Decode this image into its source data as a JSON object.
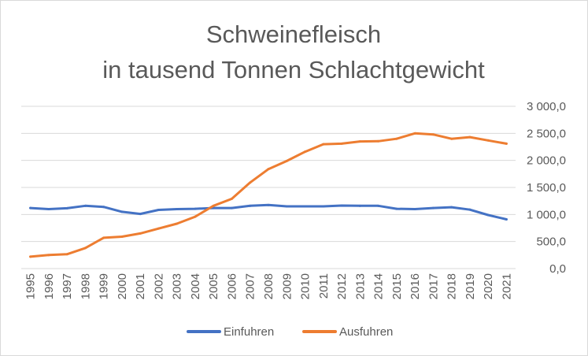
{
  "chart_data": {
    "type": "line",
    "title": "Schweinefleisch",
    "subtitle": "in tausend Tonnen Schlachtgewicht",
    "xlabel": "",
    "ylabel": "",
    "ylim": [
      0,
      3000
    ],
    "y_ticks": [
      0,
      500,
      1000,
      1500,
      2000,
      2500,
      3000
    ],
    "y_tick_labels": [
      "0,0",
      "500,0",
      "1 000,0",
      "1 500,0",
      "2 000,0",
      "2 500,0",
      "3 000,0"
    ],
    "y_axis_position": "right",
    "grid": true,
    "legend_position": "bottom",
    "categories": [
      "1995",
      "1996",
      "1997",
      "1998",
      "1999",
      "2000",
      "2001",
      "2002",
      "2003",
      "2004",
      "2005",
      "2006",
      "2007",
      "2008",
      "2009",
      "2010",
      "2011",
      "2012",
      "2013",
      "2014",
      "2015",
      "2016",
      "2017",
      "2018",
      "2019",
      "2020",
      "2021"
    ],
    "series": [
      {
        "name": "Einfuhren",
        "color": "#4472c4",
        "values": [
          1120,
          1100,
          1115,
          1160,
          1140,
          1050,
          1010,
          1085,
          1100,
          1105,
          1120,
          1120,
          1160,
          1175,
          1150,
          1150,
          1150,
          1165,
          1160,
          1160,
          1105,
          1100,
          1120,
          1135,
          1090,
          990,
          910
        ]
      },
      {
        "name": "Ausfuhren",
        "color": "#ed7d31",
        "values": [
          220,
          250,
          265,
          380,
          570,
          590,
          650,
          740,
          830,
          960,
          1160,
          1290,
          1590,
          1840,
          1990,
          2160,
          2300,
          2310,
          2350,
          2355,
          2400,
          2500,
          2480,
          2400,
          2430,
          2370,
          2310
        ]
      }
    ]
  }
}
